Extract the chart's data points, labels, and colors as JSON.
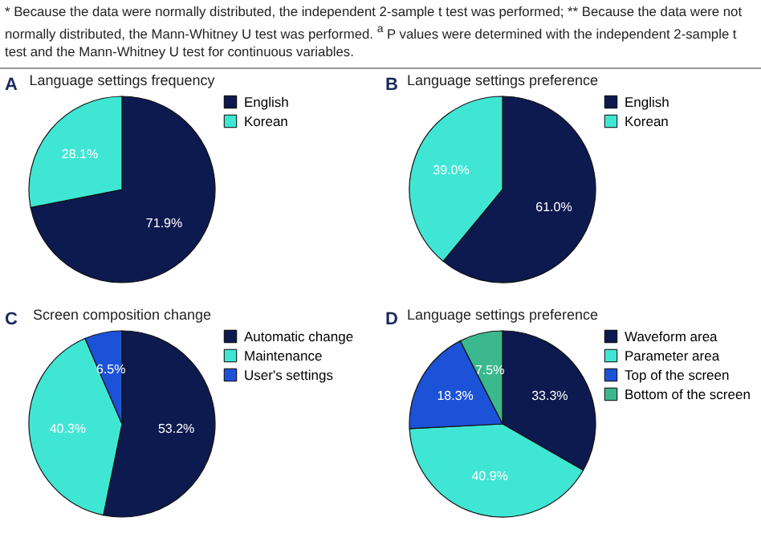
{
  "chart_data": [
    {
      "type": "pie",
      "title": "Language settings frequency",
      "annotations": [
        "* Because the data were normally distributed, the independent 2-sample t test was performed; ** Because the data were not normally distributed, the Mann-Whitney U test was performed. $^{a}$ P values were determined with the independent 2-sample t test and the Mann-Whitney U test for continuous variables.",
        "A"
      ],
      "categories": [
        "English",
        "Korean"
      ],
      "values": [
        71.9,
        28.1
      ],
      "value_labels": [
        "71.9%",
        "28.1%"
      ],
      "colors": [
        "#0d1a4f",
        "#40e6d4"
      ],
      "legend": "right"
    },
    {
      "type": "pie",
      "title": "Language settings preference",
      "annotations": [
        "B"
      ],
      "categories": [
        "English",
        "Korean"
      ],
      "values": [
        61.0,
        39.0
      ],
      "value_labels": [
        "61.0%",
        "39.0%"
      ],
      "colors": [
        "#0d1a4f",
        "#40e6d4"
      ],
      "legend": "right"
    },
    {
      "type": "pie",
      "title": "Screen composition change",
      "annotations": [
        "C"
      ],
      "categories": [
        "Automatic change",
        "Maintenance",
        "User's settings"
      ],
      "values": [
        53.2,
        40.3,
        6.5
      ],
      "value_labels": [
        "53.2%",
        "40.3%",
        "6.5%"
      ],
      "colors": [
        "#0d1a4f",
        "#40e6d4",
        "#1c52d8"
      ],
      "legend": "right"
    },
    {
      "type": "pie",
      "title": "Language settings preference",
      "annotations": [
        "D"
      ],
      "categories": [
        "Waveform area",
        "Parameter area",
        "Top of the screen",
        "Bottom of the screen"
      ],
      "values": [
        33.3,
        40.9,
        18.3,
        7.5
      ],
      "value_labels": [
        "33.3%",
        "40.9%",
        "18.3%",
        "7.5%"
      ],
      "colors": [
        "#0d1a4f",
        "#40e6d4",
        "#1c52d8",
        "#3cb88f"
      ],
      "legend": "right"
    }
  ]
}
